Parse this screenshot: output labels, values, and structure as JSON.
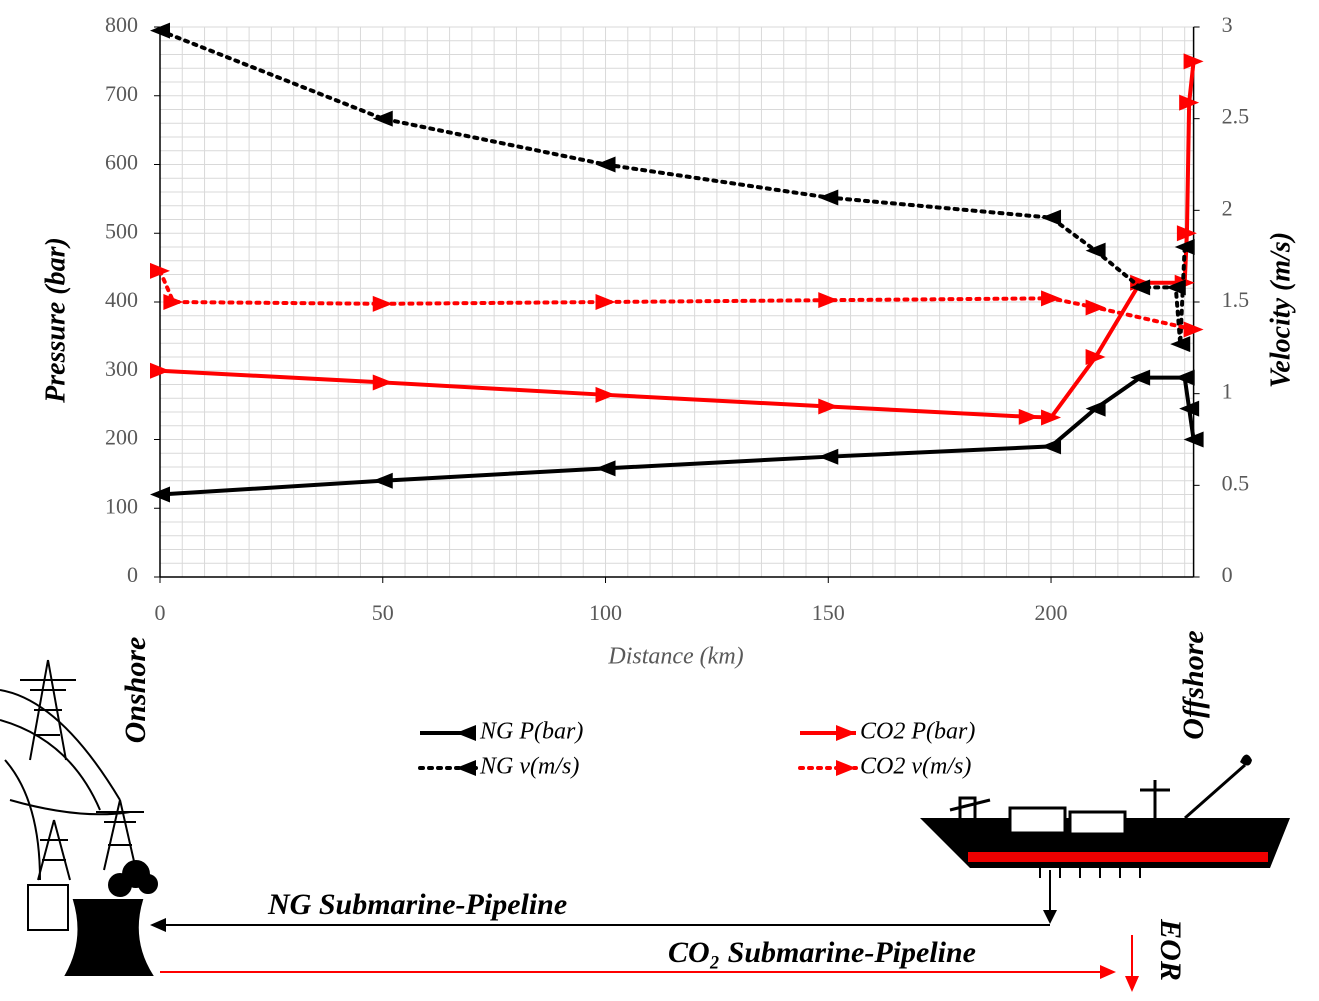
{
  "chart_data": {
    "type": "line",
    "x_label": "Distance (km)",
    "y_label": "Pressure (bar)",
    "y2_label": "Velocity (m/s)",
    "xlim": [
      0,
      232
    ],
    "xticks": [
      0,
      50,
      100,
      150,
      200
    ],
    "ylim": [
      0,
      800
    ],
    "yticks": [
      0,
      100,
      200,
      300,
      400,
      500,
      600,
      700,
      800
    ],
    "y2lim": [
      0,
      3
    ],
    "y2ticks": [
      0,
      0.5,
      1,
      1.5,
      2,
      2.5,
      3
    ],
    "grid": true,
    "legend": "bottom",
    "series": [
      {
        "name": "NG P(bar)",
        "color": "#000000",
        "style": "solid",
        "marker": "left",
        "x": [
          0,
          50,
          100,
          150,
          200,
          210,
          220,
          230,
          231,
          232
        ],
        "values": [
          120,
          140,
          158,
          175,
          190,
          245,
          290,
          290,
          245,
          200
        ]
      },
      {
        "name": "CO2 P(bar)",
        "color": "#ff0000",
        "style": "solid",
        "marker": "right",
        "x": [
          0,
          50,
          100,
          150,
          195,
          200,
          210,
          220,
          230,
          230.5,
          231,
          232
        ],
        "values": [
          300,
          283,
          265,
          248,
          233,
          232,
          320,
          428,
          428,
          500,
          690,
          750
        ]
      },
      {
        "name": "NG v(m/s)",
        "color": "#000000",
        "style": "dotted",
        "marker": "left",
        "axis": "y2",
        "x": [
          0,
          50,
          100,
          150,
          200,
          210,
          220,
          228,
          229,
          230
        ],
        "values": [
          2.98,
          2.5,
          2.25,
          2.07,
          1.96,
          1.78,
          1.58,
          1.58,
          1.27,
          1.8
        ]
      },
      {
        "name": "CO2 v(m/s)",
        "color": "#ff0000",
        "style": "dotted",
        "marker": "right",
        "axis": "y2",
        "x": [
          0,
          3,
          50,
          100,
          150,
          200,
          210,
          232
        ],
        "values": [
          1.67,
          1.5,
          1.49,
          1.5,
          1.51,
          1.52,
          1.47,
          1.35
        ]
      }
    ],
    "annotations": [
      "Onshore",
      "Offshore",
      "NG Submarine-Pipeline",
      "CO₂ Submarine-Pipeline",
      "EOR"
    ]
  }
}
